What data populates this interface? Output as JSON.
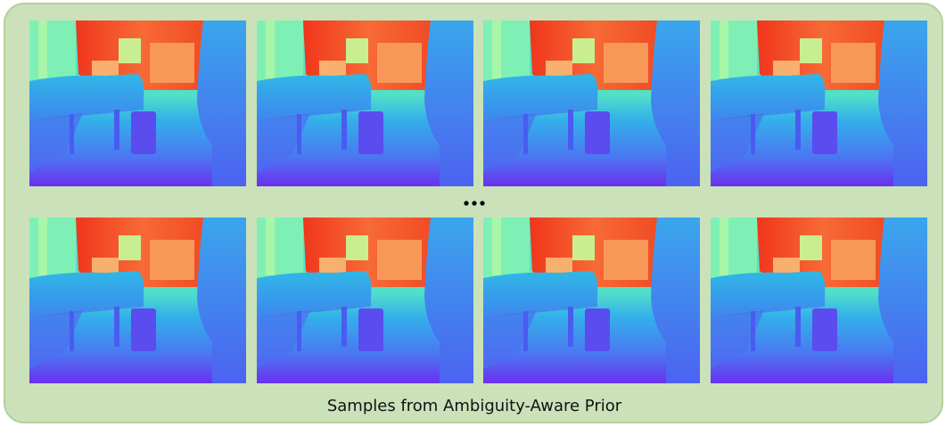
{
  "caption": "Samples from Ambiguity-Aware Prior"
}
